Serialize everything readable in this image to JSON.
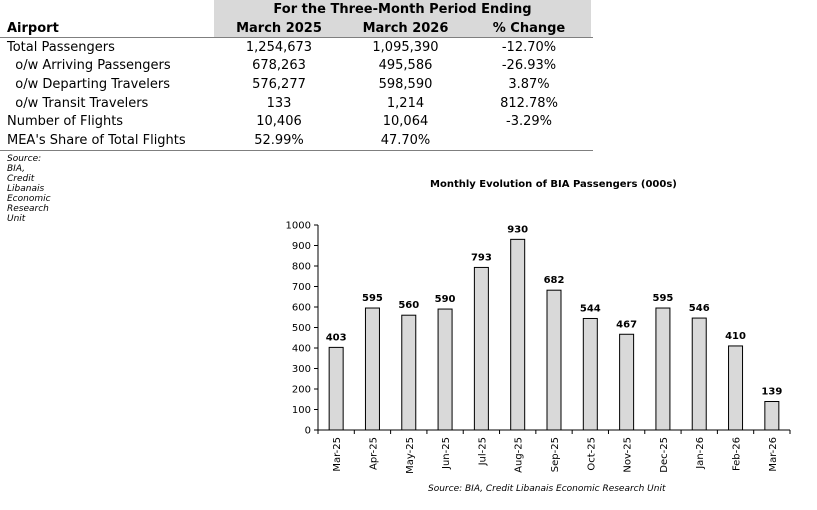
{
  "table": {
    "period_header": "For the Three-Month Period Ending",
    "columns": [
      "Airport",
      "March 2025",
      "March 2026",
      "% Change"
    ],
    "rows": [
      [
        "Total Passengers",
        "1,254,673",
        "1,095,390",
        "-12.70%"
      ],
      [
        "  o/w Arriving Passengers",
        "678,263",
        "495,586",
        "-26.93%"
      ],
      [
        "  o/w Departing Travelers",
        "576,277",
        "598,590",
        "3.87%"
      ],
      [
        "  o/w Transit Travelers",
        "133",
        "1,214",
        "812.78%"
      ],
      [
        "Number of Flights",
        "10,406",
        "10,064",
        "-3.29%"
      ],
      [
        "MEA's Share of Total Flights",
        "52.99%",
        "47.70%",
        ""
      ]
    ],
    "source": "Source: BIA, Credit Libanais Economic Research Unit"
  },
  "chart_data": {
    "type": "bar",
    "title": "Monthly Evolution of BIA Passengers (000s)",
    "categories": [
      "Mar-25",
      "Apr-25",
      "May-25",
      "Jun-25",
      "Jul-25",
      "Aug-25",
      "Sep-25",
      "Oct-25",
      "Nov-25",
      "Dec-25",
      "Jan-26",
      "Feb-26",
      "Mar-26"
    ],
    "values": [
      403,
      595,
      560,
      590,
      793,
      930,
      682,
      544,
      467,
      595,
      546,
      410,
      139
    ],
    "yticks": [
      0,
      100,
      200,
      300,
      400,
      500,
      600,
      700,
      800,
      900,
      1000
    ],
    "ylim": [
      0,
      1000
    ],
    "xlabel": "",
    "ylabel": "",
    "grid": false,
    "bar_color": "#d9d9d9",
    "source": "Source: BIA, Credit Libanais Economic Research Unit"
  }
}
